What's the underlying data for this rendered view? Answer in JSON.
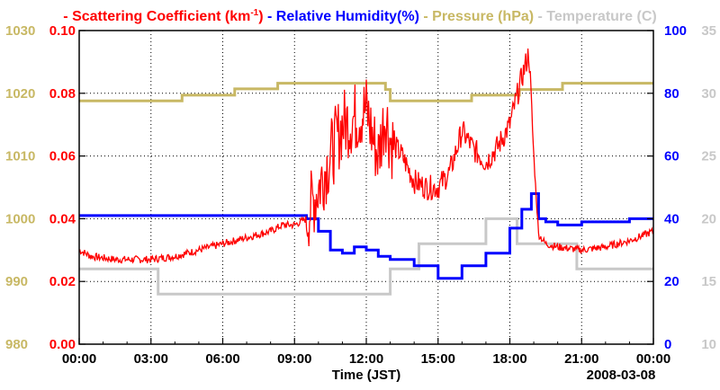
{
  "chart_data": {
    "type": "line",
    "title": {
      "scattering": "- Scattering Coefficient (km",
      "scattering_sup": "-1",
      "scattering_tail": ")",
      "humidity": "- Relative Humidity(%)",
      "pressure": "- Pressure (hPa)",
      "temperature": "- Temperature (C)"
    },
    "xlabel": "Time (JST)",
    "date_label": "2008-03-08",
    "x_ticks": [
      "00:00",
      "03:00",
      "06:00",
      "09:00",
      "12:00",
      "15:00",
      "18:00",
      "21:00",
      "00:00"
    ],
    "x_range_hours": [
      0,
      24
    ],
    "colors": {
      "scattering": "#ff0000",
      "humidity": "#0000ff",
      "pressure": "#c8b864",
      "temperature": "#c8c8c8"
    },
    "axes": {
      "pressure": {
        "label": "Pressure (hPa)",
        "range": [
          980,
          1030
        ],
        "ticks": [
          "980",
          "990",
          "1000",
          "1010",
          "1020",
          "1030"
        ]
      },
      "scattering": {
        "label": "Scattering Coefficient (km-1)",
        "range": [
          0,
          0.1
        ],
        "ticks": [
          "0.00",
          "0.02",
          "0.04",
          "0.06",
          "0.08",
          "0.10"
        ]
      },
      "humidity": {
        "label": "Relative Humidity (%)",
        "range": [
          0,
          100
        ],
        "ticks": [
          "0",
          "20",
          "40",
          "60",
          "80",
          "100"
        ]
      },
      "temperature": {
        "label": "Temperature (C)",
        "range": [
          10,
          35
        ],
        "ticks": [
          "10",
          "15",
          "20",
          "25",
          "30",
          "35"
        ]
      }
    },
    "series": [
      {
        "name": "Scattering Coefficient",
        "axis": "scattering",
        "style": "noisy",
        "points": [
          [
            0,
            0.03
          ],
          [
            0.5,
            0.028
          ],
          [
            1.5,
            0.027
          ],
          [
            3,
            0.027
          ],
          [
            4,
            0.028
          ],
          [
            5,
            0.03
          ],
          [
            6,
            0.032
          ],
          [
            7,
            0.034
          ],
          [
            8,
            0.036
          ],
          [
            8.5,
            0.038
          ],
          [
            9,
            0.038
          ],
          [
            9.5,
            0.04
          ],
          [
            10,
            0.05
          ],
          [
            10.5,
            0.06
          ],
          [
            11,
            0.07
          ],
          [
            11.5,
            0.072
          ],
          [
            12,
            0.075
          ],
          [
            12.3,
            0.065
          ],
          [
            12.5,
            0.06
          ],
          [
            12.8,
            0.074
          ],
          [
            13,
            0.065
          ],
          [
            13.5,
            0.06
          ],
          [
            14,
            0.052
          ],
          [
            14.5,
            0.05
          ],
          [
            15,
            0.05
          ],
          [
            15.5,
            0.055
          ],
          [
            16,
            0.068
          ],
          [
            16.5,
            0.062
          ],
          [
            17,
            0.058
          ],
          [
            17.5,
            0.063
          ],
          [
            18,
            0.07
          ],
          [
            18.5,
            0.085
          ],
          [
            18.8,
            0.093
          ],
          [
            19,
            0.06
          ],
          [
            19.2,
            0.035
          ],
          [
            19.5,
            0.032
          ],
          [
            20,
            0.031
          ],
          [
            21,
            0.03
          ],
          [
            22,
            0.031
          ],
          [
            23,
            0.033
          ],
          [
            24,
            0.036
          ]
        ]
      },
      {
        "name": "Relative Humidity",
        "axis": "humidity",
        "style": "step",
        "points": [
          [
            0,
            41
          ],
          [
            9,
            41
          ],
          [
            9.5,
            40
          ],
          [
            10,
            36
          ],
          [
            10.5,
            30
          ],
          [
            11,
            29
          ],
          [
            11.5,
            31
          ],
          [
            12,
            30
          ],
          [
            12.5,
            28
          ],
          [
            13,
            27
          ],
          [
            14,
            25
          ],
          [
            15,
            21
          ],
          [
            15.5,
            21
          ],
          [
            16,
            25
          ],
          [
            17,
            29
          ],
          [
            18,
            37
          ],
          [
            18.5,
            43
          ],
          [
            18.9,
            48
          ],
          [
            19.2,
            40
          ],
          [
            19.5,
            39
          ],
          [
            20,
            38
          ],
          [
            21,
            39
          ],
          [
            22,
            39
          ],
          [
            23,
            40
          ],
          [
            24,
            40
          ]
        ]
      },
      {
        "name": "Pressure",
        "axis": "pressure",
        "style": "step",
        "points": [
          [
            0,
            1018.8
          ],
          [
            4.3,
            1019.7
          ],
          [
            6.5,
            1020.7
          ],
          [
            8.3,
            1021.6
          ],
          [
            12.8,
            1020.6
          ],
          [
            13,
            1018.8
          ],
          [
            16,
            1018.8
          ],
          [
            16.4,
            1019.7
          ],
          [
            18,
            1019.7
          ],
          [
            18.4,
            1020.6
          ],
          [
            20.2,
            1021.6
          ],
          [
            24,
            1021.6
          ]
        ]
      },
      {
        "name": "Temperature",
        "axis": "temperature",
        "style": "step",
        "points": [
          [
            0,
            16
          ],
          [
            3.3,
            14
          ],
          [
            13,
            14
          ],
          [
            13,
            16
          ],
          [
            14.2,
            18
          ],
          [
            17,
            20
          ],
          [
            18.3,
            18
          ],
          [
            20.8,
            16
          ],
          [
            24,
            16
          ]
        ]
      }
    ]
  }
}
